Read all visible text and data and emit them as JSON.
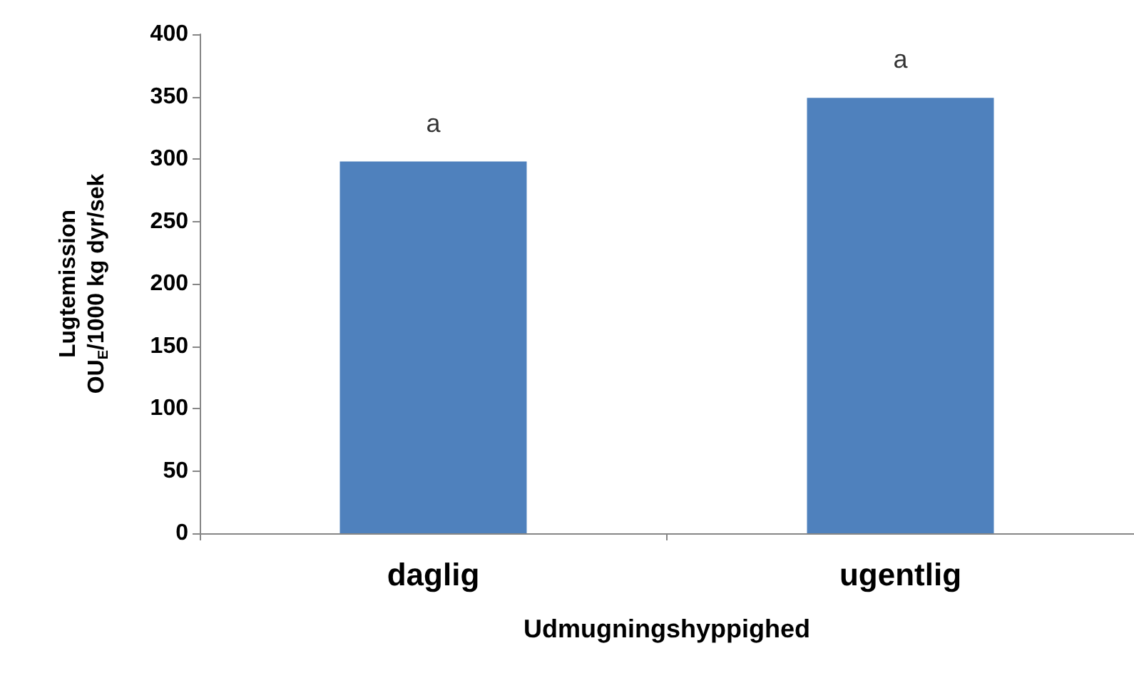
{
  "chart_data": {
    "type": "bar",
    "xlabel": "Udmugningshyppighed",
    "ylabel": "Lugtemission\nOU$_{E}$/1000 kg dyr/sek",
    "categories": [
      "daglig",
      "ugentlig"
    ],
    "values": [
      298,
      349
    ],
    "color": "#4f81bd",
    "ylim": [
      0,
      400
    ],
    "yticks": [
      0,
      50,
      100,
      150,
      200,
      250,
      300,
      350,
      400
    ],
    "grid": false,
    "annotations": [
      {
        "text": "a",
        "x": "daglig",
        "y": 298
      },
      {
        "text": "a",
        "x": "ugentlig",
        "y": 349
      }
    ]
  }
}
